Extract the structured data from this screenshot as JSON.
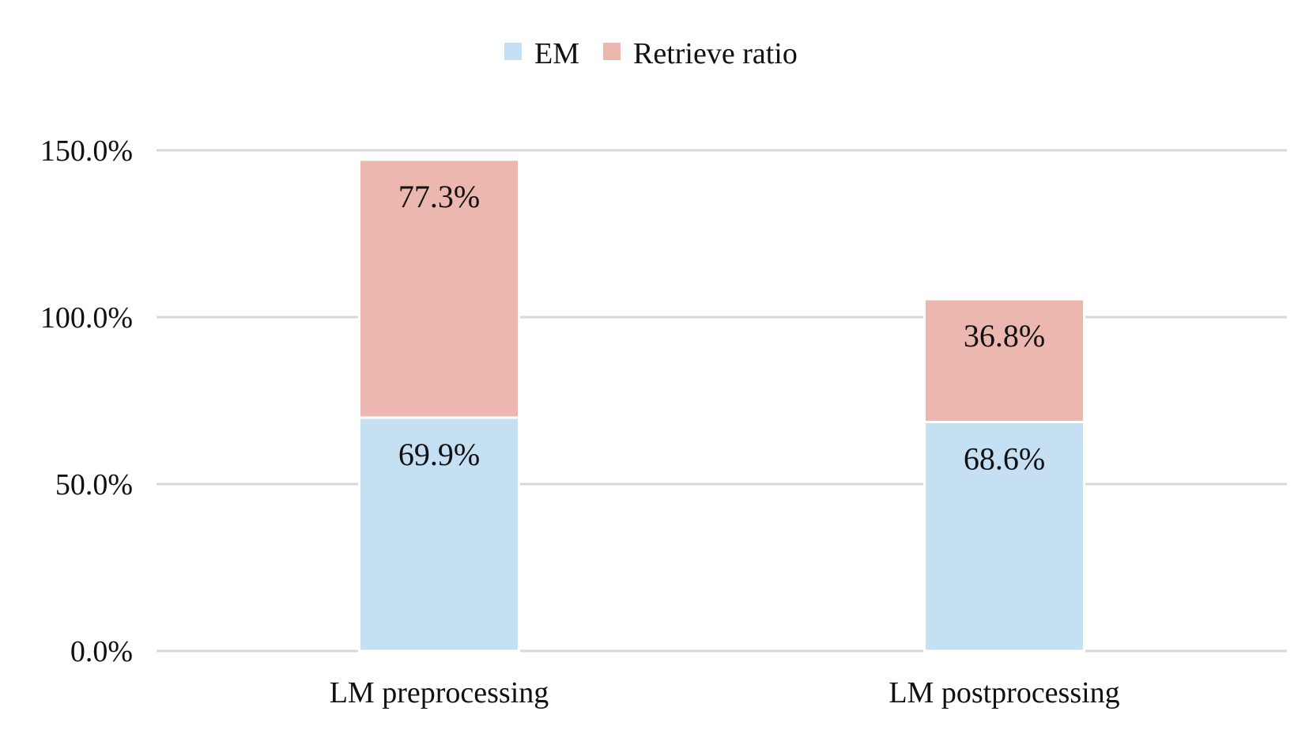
{
  "chart_data": {
    "type": "bar",
    "stacked": true,
    "categories": [
      "LM preprocessing",
      "LM postprocessing"
    ],
    "series": [
      {
        "name": "EM",
        "values": [
          69.9,
          68.6
        ],
        "labels": [
          "69.9%",
          "68.6%"
        ],
        "color": "#c5dff3"
      },
      {
        "name": "Retrieve ratio",
        "values": [
          77.3,
          36.8
        ],
        "labels": [
          "77.3%",
          "36.8%"
        ],
        "color": "#ecb7ae"
      }
    ],
    "ylim": [
      0,
      150
    ],
    "yticks": [
      0,
      50,
      100,
      150
    ],
    "ytick_labels": [
      "0.0%",
      "50.0%",
      "100.0%",
      "150.0%"
    ],
    "title": "",
    "xlabel": "",
    "ylabel": "",
    "legend_position": "top-center",
    "grid": "horizontal",
    "grid_color": "#d9d9d9"
  }
}
